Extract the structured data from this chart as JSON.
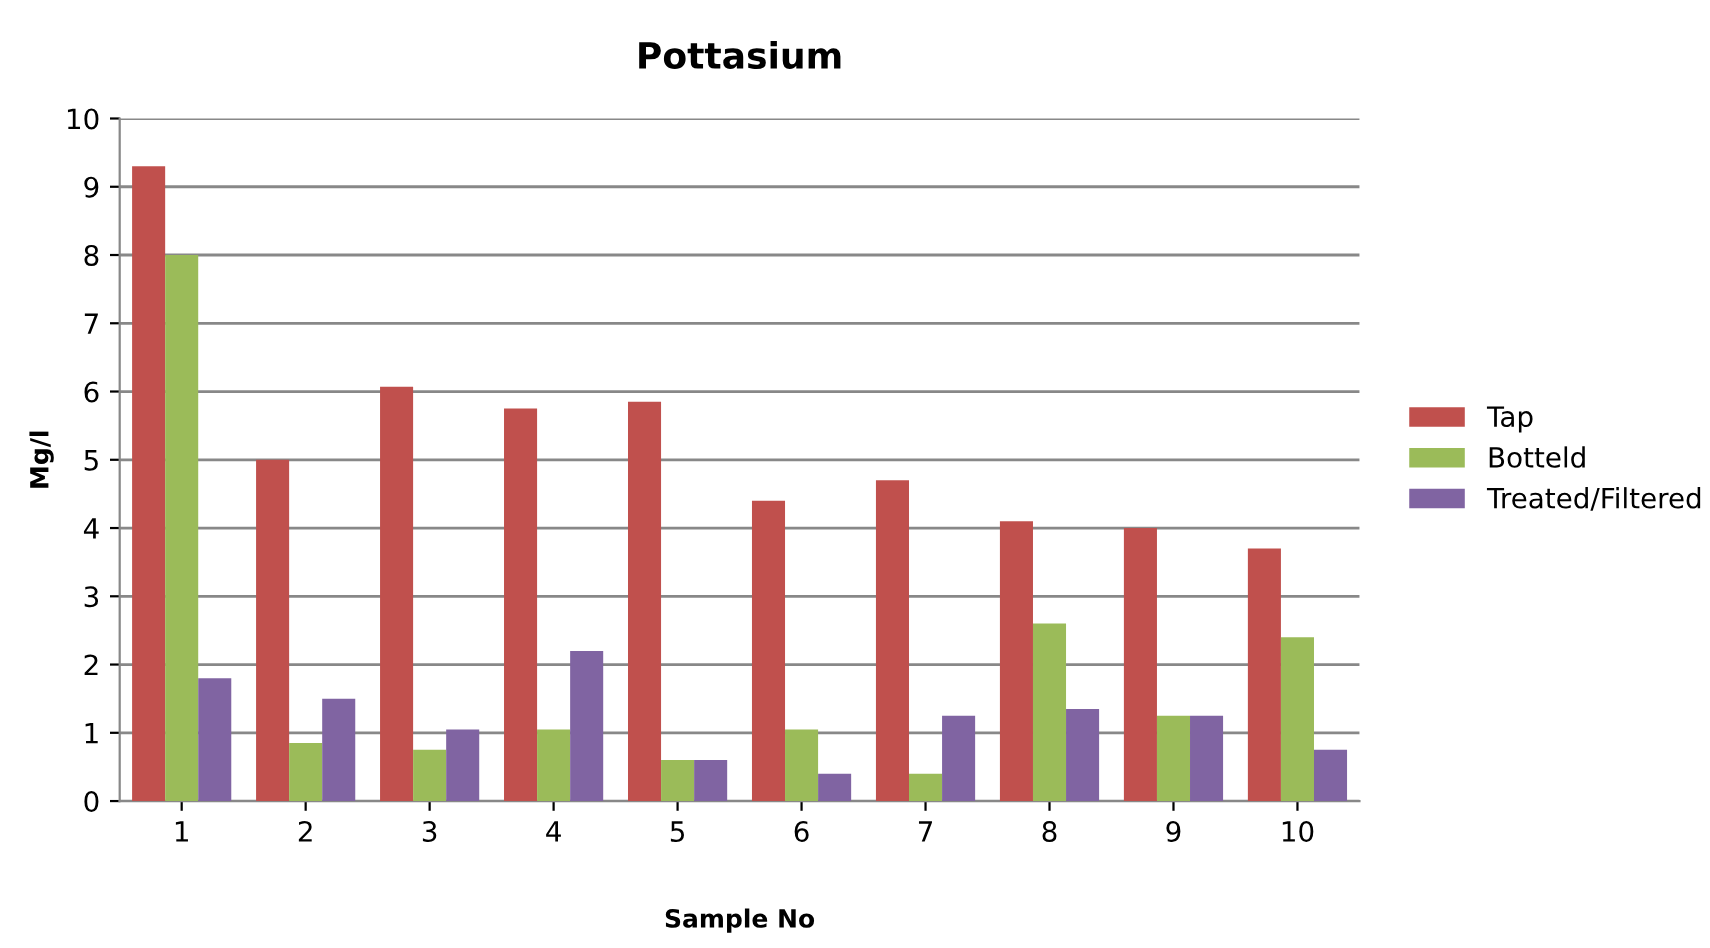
{
  "chart_data": {
    "type": "bar",
    "title": "Pottasium",
    "xlabel": "Sample No",
    "ylabel": "Mg/l",
    "categories": [
      "1",
      "2",
      "3",
      "4",
      "5",
      "6",
      "7",
      "8",
      "9",
      "10"
    ],
    "series": [
      {
        "name": "Tap",
        "color": "#c0504d",
        "values": [
          9.3,
          5.0,
          6.07,
          5.75,
          5.85,
          4.4,
          4.7,
          4.1,
          4.0,
          3.7
        ]
      },
      {
        "name": "Botteld",
        "color": "#9bbb59",
        "values": [
          8.0,
          0.85,
          0.75,
          1.05,
          0.6,
          1.05,
          0.4,
          2.6,
          1.25,
          2.4
        ]
      },
      {
        "name": "Treated/Filtered",
        "color": "#8064a2",
        "values": [
          1.8,
          1.5,
          1.05,
          2.2,
          0.6,
          0.4,
          1.25,
          1.35,
          1.25,
          0.75
        ]
      }
    ],
    "ylim": [
      0,
      10
    ],
    "yticks": [
      0,
      1,
      2,
      3,
      4,
      5,
      6,
      7,
      8,
      9,
      10
    ],
    "grid": "y",
    "legend": "right"
  }
}
